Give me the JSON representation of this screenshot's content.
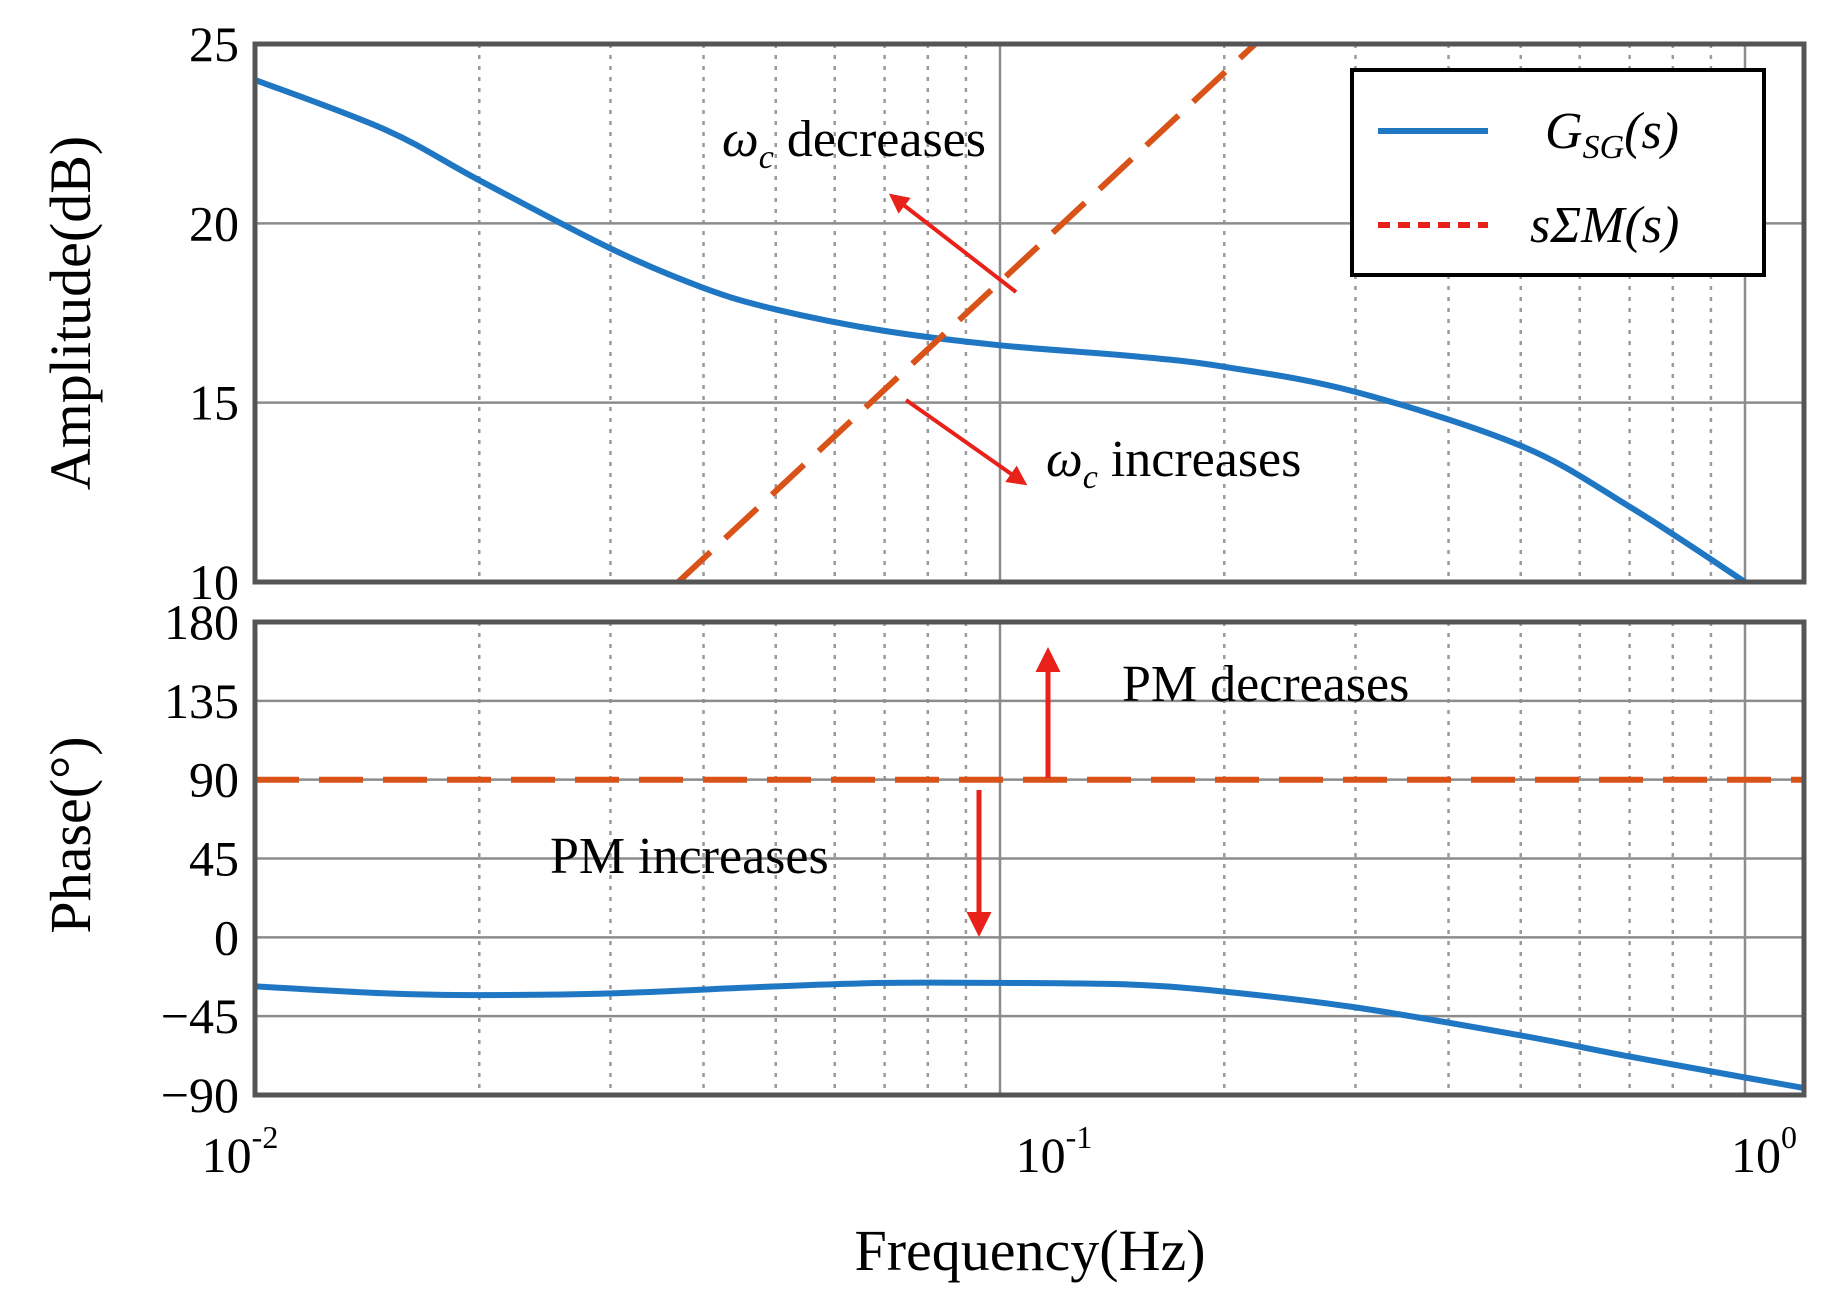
{
  "chart_data": [
    {
      "panel": "amplitude",
      "type": "line",
      "ylabel": "Amplitude(dB)",
      "xlabel": "",
      "xscale": "log",
      "xlim": [
        0.01,
        1.2
      ],
      "ylim": [
        10,
        25
      ],
      "yticks": [
        10,
        15,
        20,
        25
      ],
      "grid": true,
      "legend_position": "top-right",
      "series": [
        {
          "name": "G_SG(s)",
          "color": "#1f77c4",
          "style": "solid",
          "x": [
            0.01,
            0.015,
            0.02,
            0.03,
            0.04,
            0.05,
            0.07,
            0.1,
            0.15,
            0.2,
            0.3,
            0.5,
            0.7,
            1.0
          ],
          "y": [
            24.0,
            22.6,
            21.2,
            19.3,
            18.2,
            17.6,
            17.0,
            16.6,
            16.3,
            16.0,
            15.3,
            13.8,
            12.1,
            10.0
          ]
        },
        {
          "name": "sΣM(s)",
          "color": "#d95319",
          "style": "dashed",
          "x": [
            0.037,
            0.22
          ],
          "y": [
            10.0,
            25.0
          ]
        }
      ],
      "legend_entries": [
        {
          "label": "G",
          "subscript": "SG",
          "suffix": "(s)",
          "color": "#1f77c4",
          "style": "solid"
        },
        {
          "label": "sΣM(s)",
          "color": "#e8211a",
          "style": "dotted"
        }
      ],
      "annotations": {
        "top": {
          "symbol": "ω",
          "subscript": "c",
          "text": " decreases"
        },
        "bottom": {
          "symbol": "ω",
          "subscript": "c",
          "text": " increases"
        }
      }
    },
    {
      "panel": "phase",
      "type": "line",
      "ylabel": "Phase(°)",
      "xlabel": "Frequency(Hz)",
      "xscale": "log",
      "xlim": [
        0.01,
        1.2
      ],
      "ylim": [
        -90,
        180
      ],
      "yticks": [
        -90,
        -45,
        0,
        45,
        90,
        135,
        180
      ],
      "grid": true,
      "series": [
        {
          "name": "G_SG(s)",
          "color": "#1f77c4",
          "style": "solid",
          "x": [
            0.01,
            0.015,
            0.02,
            0.03,
            0.05,
            0.07,
            0.1,
            0.15,
            0.2,
            0.3,
            0.5,
            0.7,
            1.0,
            1.2
          ],
          "y": [
            -28,
            -32,
            -33,
            -32,
            -28,
            -26,
            -26,
            -27,
            -31,
            -40,
            -56,
            -68,
            -80,
            -86
          ]
        },
        {
          "name": "sΣM(s)",
          "color": "#d95319",
          "style": "dashed",
          "x": [
            0.01,
            1.2
          ],
          "y": [
            90,
            90
          ]
        }
      ],
      "annotations": {
        "up": "PM decreases",
        "down": "PM increases"
      }
    }
  ],
  "xtick_labels": [
    {
      "base": "10",
      "exp": "-2"
    },
    {
      "base": "10",
      "exp": "-1"
    },
    {
      "base": "10",
      "exp": "0"
    }
  ],
  "colors": {
    "blue_series": "#1f77c4",
    "orange_series": "#d95319",
    "arrow": "#e8211a",
    "axis": "#555555",
    "grid_major": "#8c8c8c",
    "grid_minor": "#9a9a9a"
  }
}
